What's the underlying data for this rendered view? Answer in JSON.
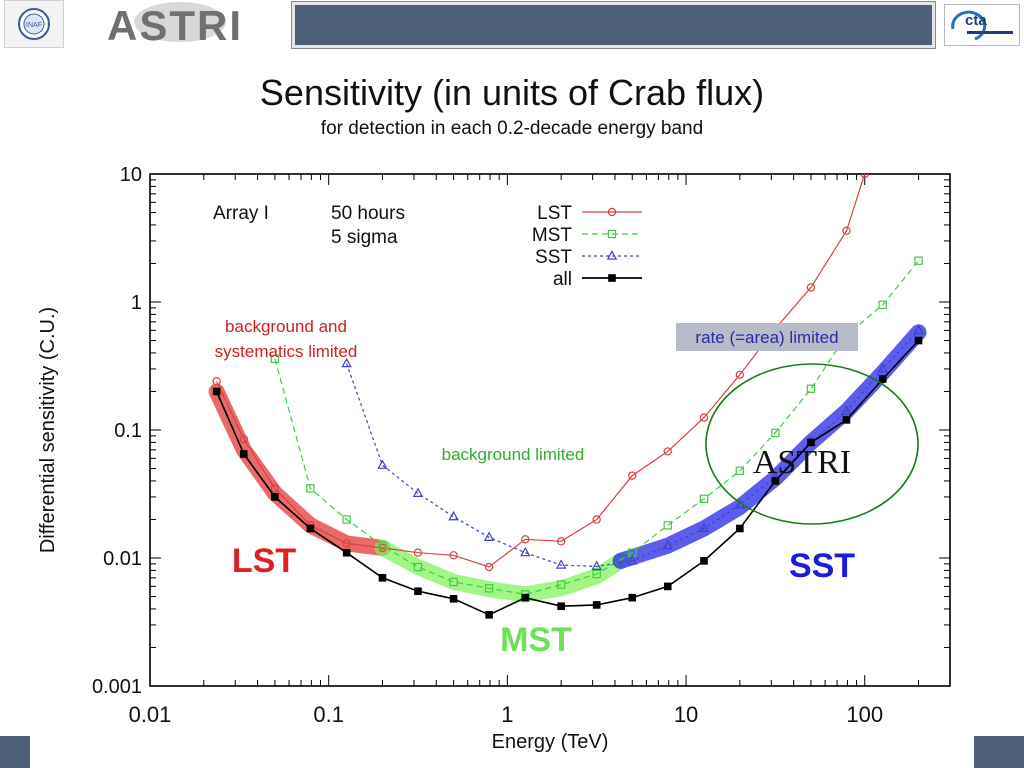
{
  "header": {
    "title": "Sensitivity (in units of Crab flux)",
    "subtitle": "for detection in each 0.2-decade energy band",
    "logos": [
      "INAF",
      "ASTRI",
      "cta"
    ]
  },
  "chart_data": {
    "type": "line",
    "xscale": "log",
    "yscale": "log",
    "xlim": [
      0.01,
      300
    ],
    "ylim": [
      0.001,
      10
    ],
    "xlabel": "Energy (TeV)",
    "ylabel": "Differential sensitivity (C.U.)",
    "xticks": [
      {
        "value": 0.01,
        "label": "0.01"
      },
      {
        "value": 0.1,
        "label": "0.1"
      },
      {
        "value": 1,
        "label": "1"
      },
      {
        "value": 10,
        "label": "10"
      },
      {
        "value": 100,
        "label": "100"
      }
    ],
    "yticks": [
      {
        "value": 0.001,
        "label": "0.001"
      },
      {
        "value": 0.01,
        "label": "0.01"
      },
      {
        "value": 0.1,
        "label": "0.1"
      },
      {
        "value": 1,
        "label": "1"
      },
      {
        "value": 10,
        "label": "10"
      }
    ],
    "info": {
      "array": "Array I",
      "duration": "50 hours",
      "significance": "5 sigma"
    },
    "legend_position": "top-right",
    "series": [
      {
        "name": "LST",
        "color": "#d94040",
        "marker": "circle",
        "dash": "solid",
        "x": [
          0.0236,
          0.0335,
          0.05,
          0.079,
          0.126,
          0.2,
          0.316,
          0.5,
          0.79,
          1.26,
          2,
          3.16,
          5,
          7.9,
          12.6,
          20,
          31.6,
          50,
          79,
          100
        ],
        "y": [
          0.24,
          0.085,
          0.035,
          0.018,
          0.013,
          0.012,
          0.011,
          0.0105,
          0.0085,
          0.014,
          0.0135,
          0.02,
          0.044,
          0.068,
          0.125,
          0.27,
          0.62,
          1.3,
          3.6,
          10
        ]
      },
      {
        "name": "MST",
        "color": "#40cc40",
        "marker": "square",
        "dash": "6,4",
        "x": [
          0.05,
          0.079,
          0.126,
          0.2,
          0.316,
          0.5,
          0.79,
          1.26,
          2,
          3.16,
          5,
          7.9,
          12.6,
          20,
          31.6,
          50,
          79,
          126,
          200
        ],
        "y": [
          0.36,
          0.035,
          0.02,
          0.0125,
          0.0085,
          0.0065,
          0.0058,
          0.0052,
          0.0062,
          0.0075,
          0.011,
          0.018,
          0.029,
          0.048,
          0.095,
          0.21,
          0.55,
          0.95,
          2.1
        ]
      },
      {
        "name": "SST",
        "color": "#4040cc",
        "marker": "triangle",
        "dash": "3,3",
        "x": [
          0.126,
          0.2,
          0.316,
          0.5,
          0.79,
          1.26,
          2,
          3.16,
          5,
          7.9,
          12.6,
          20,
          31.6,
          50,
          79,
          126,
          200
        ],
        "y": [
          0.33,
          0.053,
          0.032,
          0.021,
          0.0145,
          0.011,
          0.0088,
          0.0086,
          0.0095,
          0.0125,
          0.017,
          0.026,
          0.043,
          0.08,
          0.14,
          0.3,
          0.6
        ]
      },
      {
        "name": "all",
        "color": "#000000",
        "marker": "filled-square",
        "dash": "solid",
        "x": [
          0.0236,
          0.0335,
          0.05,
          0.079,
          0.126,
          0.2,
          0.316,
          0.5,
          0.79,
          1.26,
          2,
          3.16,
          5,
          7.9,
          12.6,
          20,
          31.6,
          50,
          79,
          126,
          200
        ],
        "y": [
          0.2,
          0.065,
          0.03,
          0.017,
          0.011,
          0.007,
          0.0055,
          0.0048,
          0.0036,
          0.0049,
          0.0042,
          0.0043,
          0.0049,
          0.006,
          0.0095,
          0.017,
          0.04,
          0.08,
          0.12,
          0.25,
          0.5
        ]
      }
    ],
    "bands": [
      {
        "name": "LST",
        "color": "#e03030",
        "x": [
          0.0236,
          0.0335,
          0.05,
          0.079,
          0.126,
          0.2
        ],
        "y": [
          0.2,
          0.07,
          0.032,
          0.018,
          0.013,
          0.012
        ]
      },
      {
        "name": "MST",
        "color": "#7ef35a",
        "x": [
          0.2,
          0.316,
          0.5,
          0.79,
          1.26,
          2,
          3.16,
          4.3
        ],
        "y": [
          0.012,
          0.0085,
          0.0065,
          0.0057,
          0.0052,
          0.0058,
          0.0072,
          0.0095
        ]
      },
      {
        "name": "SST",
        "color": "#1e1ee6",
        "x": [
          4.3,
          7.9,
          12.6,
          20,
          31.6,
          50,
          79,
          126,
          200
        ],
        "y": [
          0.0095,
          0.0125,
          0.017,
          0.025,
          0.042,
          0.08,
          0.14,
          0.28,
          0.58
        ]
      }
    ],
    "annotations": {
      "background_systematics": "background and systematics limited",
      "background_limited": "background limited",
      "rate_limited": "rate (=area) limited",
      "astri": "ASTRI",
      "lst": "LST",
      "mst": "MST",
      "sst": "SST"
    },
    "colors": {
      "lst_label": "#e02020",
      "mst_label": "#6ee05a",
      "sst_label": "#1a1ae0",
      "ellipse": "#1a7a1a",
      "bg_text": "#cc2222",
      "bg_limited_text": "#33aa33",
      "rate_text": "#2a2aa8"
    }
  }
}
